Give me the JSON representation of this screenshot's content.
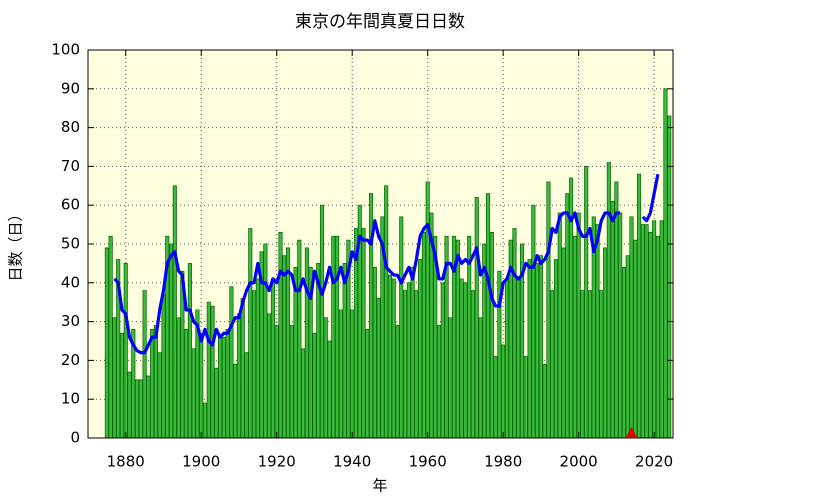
{
  "chart_data": {
    "type": "bar",
    "title": "東京の年間真夏日日数",
    "x_label": "年",
    "y_label": "日数（日）",
    "background": "#ffffe0",
    "grid": true,
    "xlim": [
      1870,
      2025
    ],
    "ylim": [
      0,
      100
    ],
    "xticks": [
      1880,
      1900,
      1920,
      1940,
      1960,
      1980,
      2000,
      2020
    ],
    "yticks": [
      0,
      10,
      20,
      30,
      40,
      50,
      60,
      70,
      80,
      90,
      100
    ],
    "x": [
      1875,
      1876,
      1877,
      1878,
      1879,
      1880,
      1881,
      1882,
      1883,
      1884,
      1885,
      1886,
      1887,
      1888,
      1889,
      1890,
      1891,
      1892,
      1893,
      1894,
      1895,
      1896,
      1897,
      1898,
      1899,
      1900,
      1901,
      1902,
      1903,
      1904,
      1905,
      1906,
      1907,
      1908,
      1909,
      1910,
      1911,
      1912,
      1913,
      1914,
      1915,
      1916,
      1917,
      1918,
      1919,
      1920,
      1921,
      1922,
      1923,
      1924,
      1925,
      1926,
      1927,
      1928,
      1929,
      1930,
      1931,
      1932,
      1933,
      1934,
      1935,
      1936,
      1937,
      1938,
      1939,
      1940,
      1941,
      1942,
      1943,
      1944,
      1945,
      1946,
      1947,
      1948,
      1949,
      1950,
      1951,
      1952,
      1953,
      1954,
      1955,
      1956,
      1957,
      1958,
      1959,
      1960,
      1961,
      1962,
      1963,
      1964,
      1965,
      1966,
      1967,
      1968,
      1969,
      1970,
      1971,
      1972,
      1973,
      1974,
      1975,
      1976,
      1977,
      1978,
      1979,
      1980,
      1981,
      1982,
      1983,
      1984,
      1985,
      1986,
      1987,
      1988,
      1989,
      1990,
      1991,
      1992,
      1993,
      1994,
      1995,
      1996,
      1997,
      1998,
      1999,
      2000,
      2001,
      2002,
      2003,
      2004,
      2005,
      2006,
      2007,
      2008,
      2009,
      2010,
      2011,
      2012,
      2013,
      2014,
      2015,
      2016,
      2017,
      2018,
      2019,
      2020,
      2021,
      2022,
      2023,
      2024
    ],
    "series": [
      {
        "type": "bar",
        "color": "#3cb83c",
        "edge_color": "#006400",
        "values": [
          49,
          52,
          31,
          46,
          27,
          45,
          17,
          28,
          15,
          15,
          38,
          16,
          28,
          29,
          22,
          37,
          52,
          50,
          65,
          31,
          43,
          28,
          45,
          23,
          33,
          27,
          9,
          35,
          34,
          18,
          26,
          26,
          28,
          39,
          19,
          32,
          36,
          22,
          54,
          38,
          41,
          48,
          50,
          32,
          41,
          29,
          53,
          47,
          49,
          29,
          44,
          51,
          23,
          49,
          44,
          27,
          45,
          60,
          31,
          25,
          52,
          52,
          33,
          45,
          51,
          33,
          54,
          60,
          54,
          28,
          63,
          44,
          36,
          57,
          65,
          42,
          41,
          29,
          57,
          38,
          40,
          44,
          38,
          46,
          53,
          66,
          58,
          52,
          29,
          40,
          52,
          31,
          52,
          51,
          41,
          40,
          52,
          38,
          62,
          31,
          50,
          63,
          53,
          21,
          43,
          24,
          41,
          51,
          54,
          41,
          50,
          21,
          46,
          60,
          45,
          47,
          19,
          66,
          38,
          46,
          58,
          49,
          63,
          67,
          52,
          58,
          38,
          70,
          38,
          57,
          55,
          38,
          49,
          71,
          61,
          66,
          58,
          44,
          47,
          57,
          51,
          68,
          55,
          55,
          53,
          56,
          52,
          56,
          90,
          83
        ]
      },
      {
        "type": "line",
        "color": "#0000ff",
        "values": [
          null,
          null,
          41,
          40,
          33,
          32,
          26,
          24,
          22.5,
          22,
          22,
          24,
          26,
          26,
          33,
          38,
          45,
          47,
          48,
          43,
          42,
          33,
          33,
          30,
          29,
          25,
          28,
          25,
          24,
          28,
          26,
          27,
          27,
          29,
          31,
          31,
          35,
          38,
          40,
          40,
          45,
          40,
          40,
          38,
          41,
          40,
          43,
          42,
          43,
          42,
          38,
          38,
          41,
          38,
          36,
          43,
          40,
          37,
          40,
          44,
          40,
          41,
          44,
          40,
          43,
          48,
          46,
          52,
          51,
          51,
          50,
          56,
          52,
          50,
          44,
          43,
          42,
          42,
          40,
          42,
          44,
          41,
          46,
          52,
          54,
          55,
          51,
          47,
          41,
          41,
          45,
          45,
          43,
          47,
          45,
          46,
          45,
          47,
          49,
          42,
          44,
          41,
          36,
          34,
          34,
          40,
          41,
          44,
          42,
          41,
          42,
          45,
          44,
          44,
          47,
          45,
          46,
          48,
          54,
          53,
          57,
          58,
          58,
          56,
          58,
          54,
          52,
          52,
          54,
          48,
          51,
          56,
          58,
          58,
          56,
          58,
          58,
          null,
          null,
          null,
          null,
          null,
          57,
          56,
          58,
          63,
          68,
          null,
          null,
          null
        ]
      }
    ],
    "markers": [
      {
        "x": 2014,
        "y": 0,
        "color": "#e00000"
      }
    ]
  }
}
